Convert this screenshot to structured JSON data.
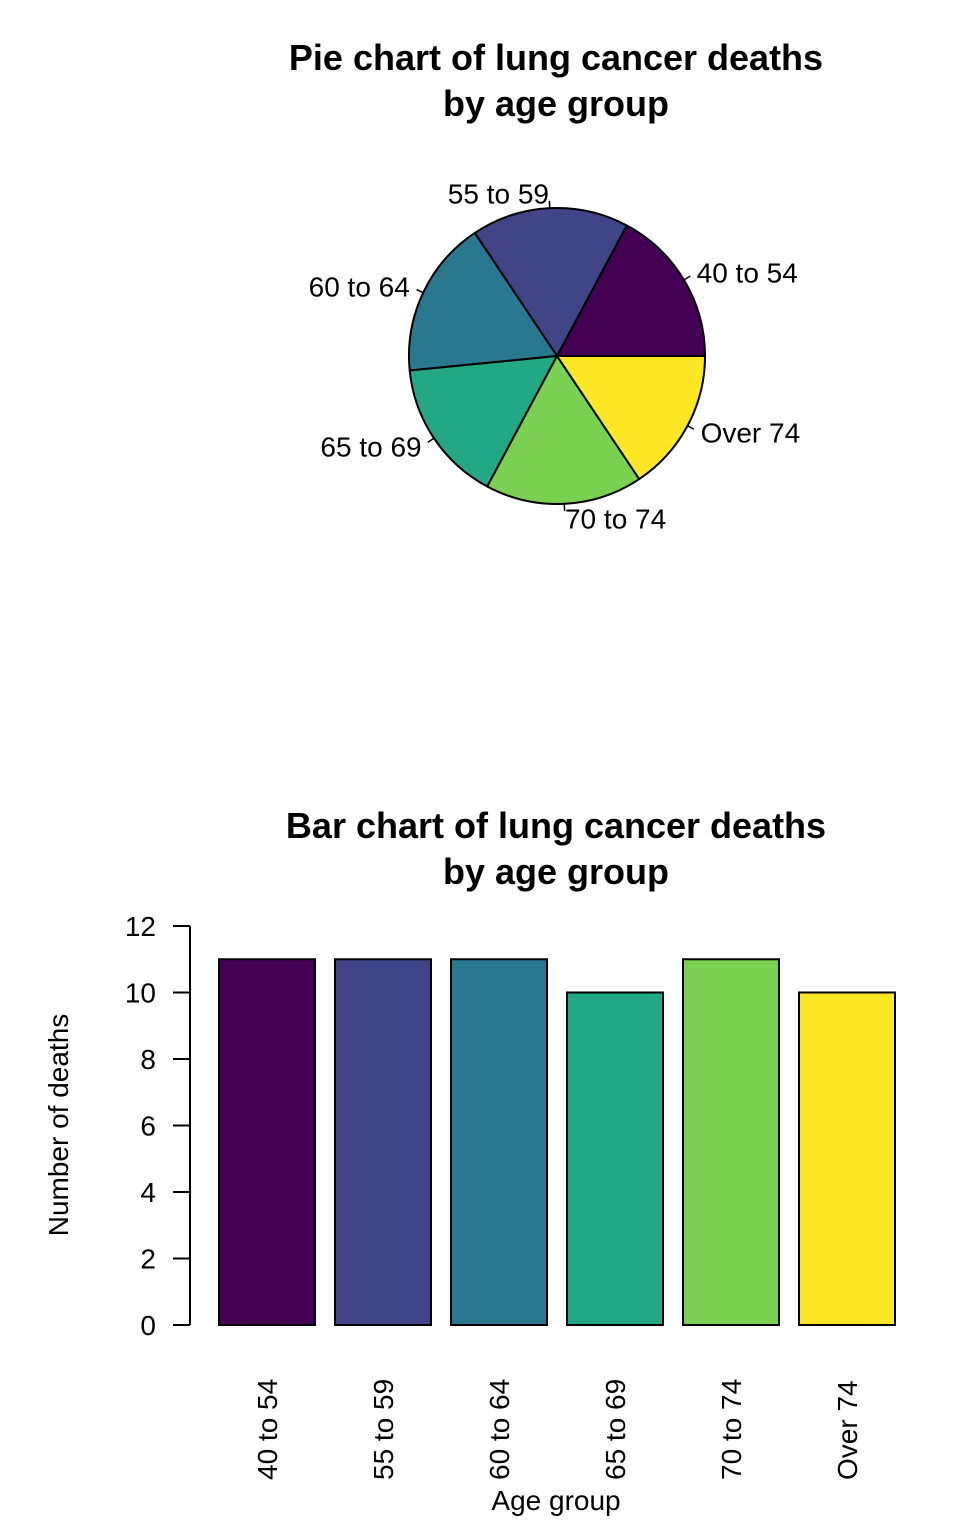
{
  "chart_data": [
    {
      "type": "pie",
      "title": [
        "Pie chart of lung cancer deaths",
        "by age group"
      ],
      "categories": [
        "40 to 54",
        "55 to 59",
        "60 to 64",
        "65 to 69",
        "70 to 74",
        "Over 74"
      ],
      "values": [
        11,
        11,
        11,
        10,
        11,
        10
      ],
      "colors": [
        "#440154",
        "#414487",
        "#2A788E",
        "#22A884",
        "#7AD151",
        "#FDE725"
      ]
    },
    {
      "type": "bar",
      "title": [
        "Bar chart of lung cancer deaths",
        "by age group"
      ],
      "categories": [
        "40 to 54",
        "55 to 59",
        "60 to 64",
        "65 to 69",
        "70 to 74",
        "Over 74"
      ],
      "values": [
        11,
        11,
        11,
        10,
        11,
        10
      ],
      "colors": [
        "#440154",
        "#414487",
        "#2A788E",
        "#22A884",
        "#7AD151",
        "#FDE725"
      ],
      "xlabel": "Age group",
      "ylabel": "Number of deaths",
      "ylim": [
        0,
        12
      ],
      "yticks": [
        "0",
        "2",
        "4",
        "6",
        "8",
        "10",
        "12"
      ]
    }
  ]
}
